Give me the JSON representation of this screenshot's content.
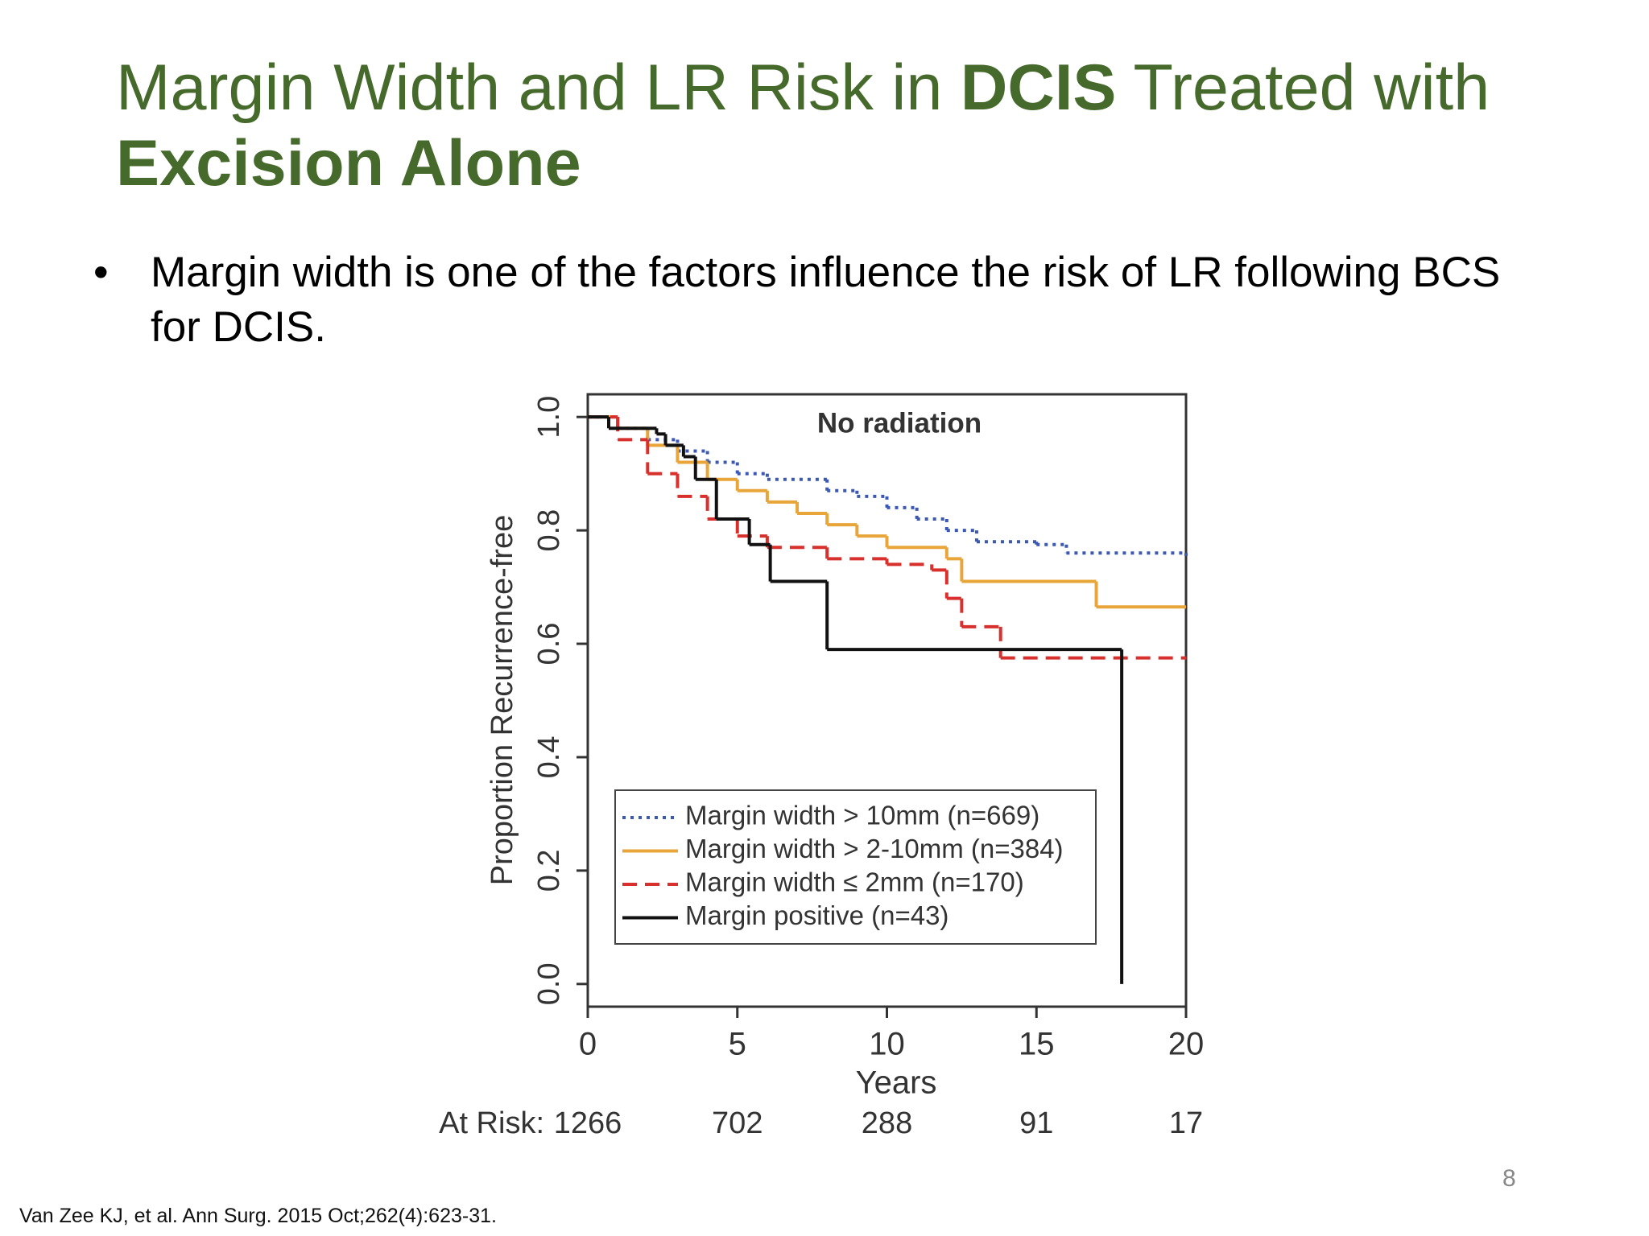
{
  "slide": {
    "title": {
      "part1": "Margin Width and LR Risk in",
      "part2": "DCIS",
      "part3": "Treated with",
      "part4": "Excision Alone"
    },
    "bullet": "Margin width is one of the factors influence the risk of LR following BCS for DCIS.",
    "citation": "Van Zee KJ, et al. Ann Surg. 2015 Oct;262(4):623-31.",
    "page_number": "8"
  },
  "chart_data": {
    "type": "step",
    "annotation": "No radiation",
    "x_label": "Years",
    "y_label": "Proportion Recurrence-free",
    "xlim": [
      0,
      20
    ],
    "ylim": [
      -0.04,
      1.04
    ],
    "xticks": [
      0,
      5,
      10,
      15,
      20
    ],
    "yticks": [
      {
        "value": 0,
        "label": "0.0"
      },
      0.2,
      0.4,
      0.6,
      0.8,
      {
        "value": 1,
        "label": "1.0"
      }
    ],
    "at_risk": {
      "label": "At Risk:",
      "values": [
        1266,
        702,
        288,
        91,
        17
      ]
    },
    "series": [
      {
        "name": "Margin width > 10mm (n=669)",
        "color": "#3b58b3",
        "dash": "dot",
        "x": [
          0,
          1,
          2,
          3,
          4,
          5,
          6,
          8,
          9,
          10,
          11,
          12,
          13,
          15,
          16,
          20
        ],
        "values": [
          1.0,
          0.98,
          0.96,
          0.94,
          0.92,
          0.9,
          0.89,
          0.87,
          0.86,
          0.84,
          0.82,
          0.8,
          0.78,
          0.775,
          0.76,
          0.755
        ]
      },
      {
        "name": "Margin width > 2-10mm (n=384)",
        "color": "#e8a53a",
        "dash": "solid",
        "x": [
          0,
          1,
          2,
          3,
          4,
          5,
          6,
          7,
          8,
          9,
          10,
          12,
          12.5,
          17,
          20
        ],
        "values": [
          1.0,
          0.98,
          0.95,
          0.92,
          0.89,
          0.87,
          0.85,
          0.83,
          0.81,
          0.79,
          0.77,
          0.75,
          0.71,
          0.665,
          0.665
        ]
      },
      {
        "name": "Margin width ≤ 2mm (n=170)",
        "color": "#d8302c",
        "dash": "dash",
        "x": [
          0,
          1,
          2,
          3,
          4,
          5,
          6,
          8,
          10,
          11.5,
          12,
          12.5,
          13.8,
          20
        ],
        "values": [
          1.0,
          0.96,
          0.9,
          0.86,
          0.82,
          0.79,
          0.77,
          0.75,
          0.74,
          0.73,
          0.68,
          0.63,
          0.575,
          0.575
        ]
      },
      {
        "name": "Margin positive (n=43)",
        "color": "#111111",
        "dash": "solid",
        "x": [
          0,
          0.7,
          2.3,
          2.6,
          3.2,
          3.6,
          4.3,
          5.4,
          6.1,
          8.0,
          17.85
        ],
        "values": [
          1.0,
          0.98,
          0.97,
          0.95,
          0.93,
          0.89,
          0.82,
          0.775,
          0.71,
          0.59,
          0.0
        ]
      }
    ]
  }
}
